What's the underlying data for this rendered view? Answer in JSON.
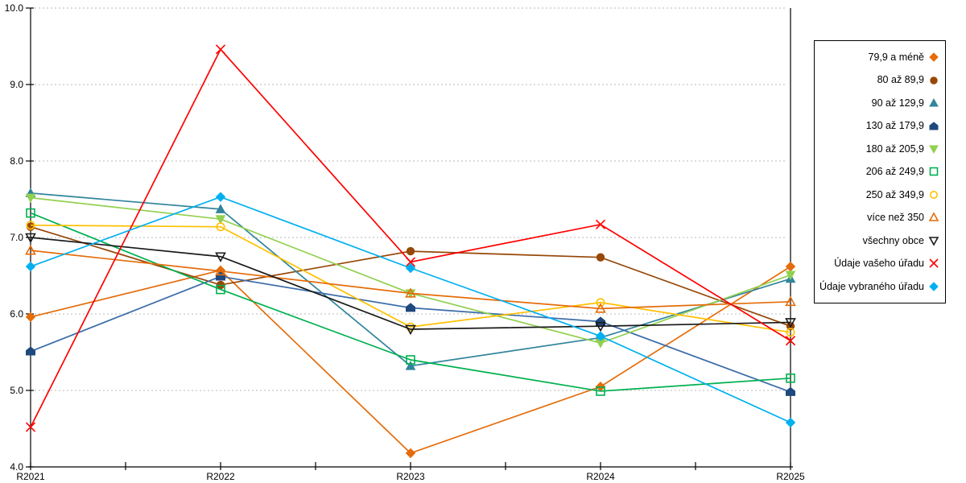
{
  "chart_data": {
    "type": "line",
    "title": "",
    "x_categories": [
      "R2021",
      "R2022",
      "R2023",
      "R2024",
      "R2025"
    ],
    "y_tick_labels": [
      "4.0",
      "5.0",
      "6.0",
      "7.0",
      "8.0",
      "9.0",
      "10.0"
    ],
    "ylim": [
      4.0,
      10.0
    ],
    "grid": "horizontal-dashed",
    "grid_color": "#b8b8b8",
    "axis_color": "#000000",
    "legend_position": "right",
    "series": [
      {
        "name": "79,9 a méně",
        "marker": "diamond",
        "fill": "solid",
        "color": "#E46C0A",
        "values": [
          5.96,
          6.57,
          4.18,
          5.05,
          6.62
        ]
      },
      {
        "name": "80 až 89,9",
        "marker": "circle",
        "fill": "solid",
        "color": "#974706",
        "values": [
          7.14,
          6.38,
          6.82,
          6.74,
          5.84
        ]
      },
      {
        "name": "90 až 129,9",
        "marker": "triangle-up",
        "fill": "solid",
        "color": "#31859C",
        "values": [
          7.58,
          7.37,
          5.32,
          5.69,
          6.46
        ]
      },
      {
        "name": "130 až 179,9",
        "marker": "pentagon",
        "fill": "solid",
        "color": "#1F497D",
        "line_color": "#3A6CA8",
        "values": [
          5.51,
          6.49,
          6.08,
          5.9,
          4.98
        ]
      },
      {
        "name": "180 až 205,9",
        "marker": "triangle-down",
        "fill": "solid",
        "color": "#92D050",
        "values": [
          7.52,
          7.24,
          6.27,
          5.62,
          6.51
        ]
      },
      {
        "name": "206 až 249,9",
        "marker": "square",
        "fill": "open",
        "color": "#00B050",
        "values": [
          7.32,
          6.32,
          5.4,
          4.99,
          5.16
        ]
      },
      {
        "name": "250 až 349,9",
        "marker": "circle",
        "fill": "open",
        "color": "#FFC000",
        "values": [
          7.16,
          7.14,
          5.83,
          6.15,
          5.76
        ]
      },
      {
        "name": "více než 350",
        "marker": "triangle-up",
        "fill": "open",
        "color": "#E46C0A",
        "values": [
          6.83,
          6.56,
          6.27,
          6.07,
          6.16
        ]
      },
      {
        "name": "všechny obce",
        "marker": "triangle-down",
        "fill": "open",
        "color": "#1A1A1A",
        "values": [
          7.0,
          6.75,
          5.8,
          5.84,
          5.89
        ]
      },
      {
        "name": "Údaje vašeho úřadu",
        "marker": "x",
        "fill": "open",
        "color": "#FF0000",
        "values": [
          4.52,
          9.46,
          6.68,
          7.17,
          5.65
        ]
      },
      {
        "name": "Údaje vybraného úřadu",
        "marker": "diamond",
        "fill": "solid",
        "color": "#00B0F0",
        "values": [
          6.62,
          7.53,
          6.6,
          5.71,
          4.58
        ]
      }
    ]
  }
}
